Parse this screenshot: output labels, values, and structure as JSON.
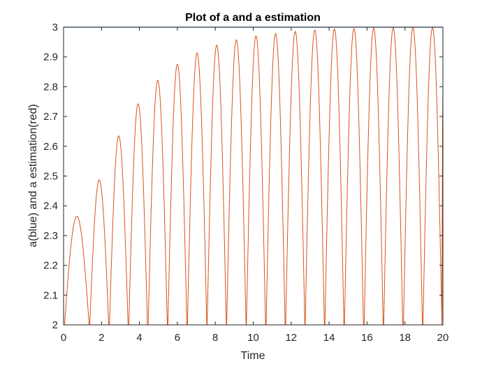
{
  "chart_data": {
    "type": "line",
    "title": "Plot of a and a estimation",
    "xlabel": "Time",
    "ylabel": "a(blue) and a estimation(red)",
    "xlim": [
      0,
      20
    ],
    "ylim": [
      2,
      3
    ],
    "xticks": [
      0,
      2,
      4,
      6,
      8,
      10,
      12,
      14,
      16,
      18,
      20
    ],
    "xtick_labels": [
      "0",
      "2",
      "4",
      "6",
      "8",
      "10",
      "12",
      "14",
      "16",
      "18",
      "20"
    ],
    "yticks": [
      2,
      2.1,
      2.2,
      2.3,
      2.4,
      2.5,
      2.6,
      2.7,
      2.8,
      2.9,
      3
    ],
    "ytick_labels": [
      "2",
      "2.1",
      "2.2",
      "2.3",
      "2.4",
      "2.5",
      "2.6",
      "2.7",
      "2.8",
      "2.9",
      "3"
    ],
    "grid": false,
    "series": [
      {
        "name": "a",
        "color": "#0072BD",
        "x": [
          0,
          20
        ],
        "y": [
          3,
          3
        ]
      },
      {
        "name": "a estimation",
        "color": "#D95319",
        "lobes": [
          {
            "start": 0.05,
            "end": 1.35,
            "peak": 2.365
          },
          {
            "start": 1.38,
            "end": 2.38,
            "peak": 2.487
          },
          {
            "start": 2.42,
            "end": 3.4,
            "peak": 2.635
          },
          {
            "start": 3.44,
            "end": 4.42,
            "peak": 2.743
          },
          {
            "start": 4.46,
            "end": 5.47,
            "peak": 2.822
          },
          {
            "start": 5.5,
            "end": 6.5,
            "peak": 2.876
          },
          {
            "start": 6.53,
            "end": 7.55,
            "peak": 2.914
          },
          {
            "start": 7.57,
            "end": 8.58,
            "peak": 2.94
          },
          {
            "start": 8.6,
            "end": 9.62,
            "peak": 2.958
          },
          {
            "start": 9.64,
            "end": 10.65,
            "peak": 2.971
          },
          {
            "start": 10.68,
            "end": 11.68,
            "peak": 2.979
          },
          {
            "start": 11.71,
            "end": 12.72,
            "peak": 2.986
          },
          {
            "start": 12.74,
            "end": 13.75,
            "peak": 2.991
          },
          {
            "start": 13.78,
            "end": 14.78,
            "peak": 2.994
          },
          {
            "start": 14.81,
            "end": 15.81,
            "peak": 2.996
          },
          {
            "start": 15.85,
            "end": 16.85,
            "peak": 2.997
          },
          {
            "start": 16.88,
            "end": 17.88,
            "peak": 2.998
          },
          {
            "start": 17.92,
            "end": 18.92,
            "peak": 2.999
          },
          {
            "start": 18.95,
            "end": 19.95,
            "peak": 2.999
          }
        ],
        "end_value": 2.77
      }
    ]
  }
}
